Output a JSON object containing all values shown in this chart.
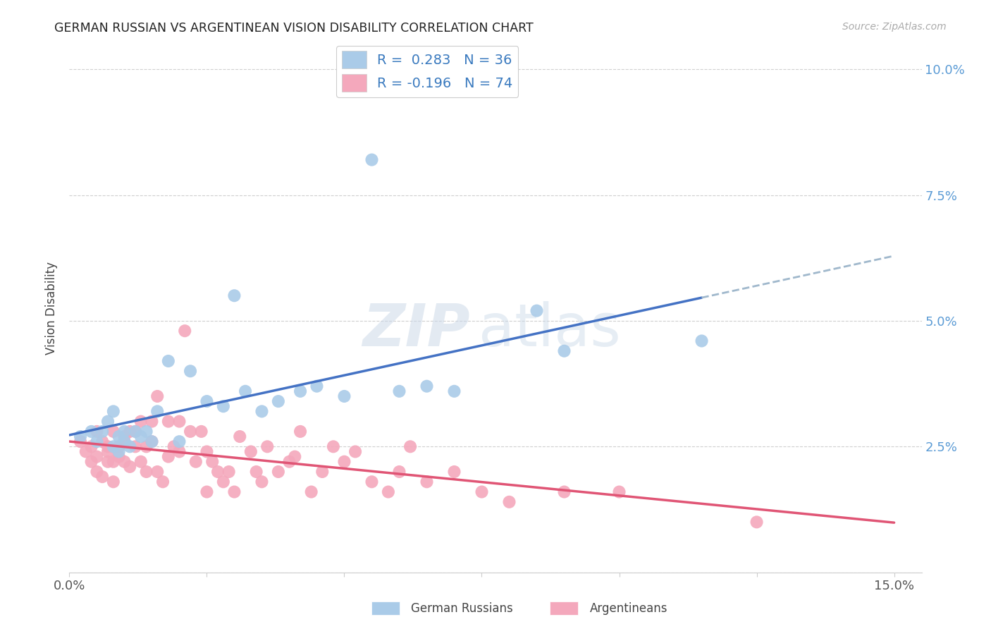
{
  "title": "GERMAN RUSSIAN VS ARGENTINEAN VISION DISABILITY CORRELATION CHART",
  "source": "Source: ZipAtlas.com",
  "xlabel_german": "German Russians",
  "xlabel_argentinean": "Argentineans",
  "ylabel": "Vision Disability",
  "r_german": 0.283,
  "n_german": 36,
  "r_argentinean": -0.196,
  "n_argentinean": 74,
  "x_min": 0.0,
  "x_max": 0.155,
  "y_min": 0.0,
  "y_max": 0.105,
  "yticks": [
    0.0,
    0.025,
    0.05,
    0.075,
    0.1
  ],
  "ytick_labels": [
    "",
    "2.5%",
    "5.0%",
    "7.5%",
    "10.0%"
  ],
  "xticks": [
    0.0,
    0.025,
    0.05,
    0.075,
    0.1,
    0.125,
    0.15
  ],
  "xtick_labels": [
    "0.0%",
    "",
    "",
    "",
    "",
    "",
    "15.0%"
  ],
  "blue_color": "#aacbe8",
  "pink_color": "#f4a8bc",
  "blue_line_color": "#4472c4",
  "pink_line_color": "#e05575",
  "dashed_line_color": "#a0b8cc",
  "watermark_zip": "ZIP",
  "watermark_atlas": "atlas",
  "german_x": [
    0.002,
    0.004,
    0.005,
    0.006,
    0.007,
    0.008,
    0.008,
    0.009,
    0.009,
    0.01,
    0.01,
    0.011,
    0.012,
    0.013,
    0.014,
    0.015,
    0.016,
    0.018,
    0.02,
    0.022,
    0.025,
    0.028,
    0.03,
    0.032,
    0.035,
    0.038,
    0.042,
    0.045,
    0.05,
    0.055,
    0.06,
    0.065,
    0.07,
    0.085,
    0.09,
    0.115
  ],
  "german_y": [
    0.027,
    0.028,
    0.026,
    0.028,
    0.03,
    0.025,
    0.032,
    0.027,
    0.024,
    0.026,
    0.028,
    0.025,
    0.028,
    0.027,
    0.028,
    0.026,
    0.032,
    0.042,
    0.026,
    0.04,
    0.034,
    0.033,
    0.055,
    0.036,
    0.032,
    0.034,
    0.036,
    0.037,
    0.035,
    0.082,
    0.036,
    0.037,
    0.036,
    0.052,
    0.044,
    0.046
  ],
  "argentinean_x": [
    0.002,
    0.003,
    0.004,
    0.004,
    0.005,
    0.005,
    0.005,
    0.006,
    0.006,
    0.007,
    0.007,
    0.007,
    0.008,
    0.008,
    0.008,
    0.009,
    0.009,
    0.01,
    0.01,
    0.01,
    0.011,
    0.011,
    0.012,
    0.012,
    0.013,
    0.013,
    0.014,
    0.014,
    0.015,
    0.015,
    0.016,
    0.016,
    0.017,
    0.018,
    0.018,
    0.019,
    0.02,
    0.02,
    0.021,
    0.022,
    0.023,
    0.024,
    0.025,
    0.025,
    0.026,
    0.027,
    0.028,
    0.029,
    0.03,
    0.031,
    0.033,
    0.034,
    0.035,
    0.036,
    0.038,
    0.04,
    0.041,
    0.042,
    0.044,
    0.046,
    0.048,
    0.05,
    0.052,
    0.055,
    0.058,
    0.06,
    0.062,
    0.065,
    0.07,
    0.075,
    0.08,
    0.09,
    0.1,
    0.125
  ],
  "argentinean_y": [
    0.026,
    0.024,
    0.022,
    0.025,
    0.023,
    0.02,
    0.028,
    0.026,
    0.019,
    0.025,
    0.022,
    0.024,
    0.028,
    0.022,
    0.018,
    0.025,
    0.023,
    0.027,
    0.022,
    0.026,
    0.028,
    0.021,
    0.028,
    0.025,
    0.022,
    0.03,
    0.025,
    0.02,
    0.03,
    0.026,
    0.035,
    0.02,
    0.018,
    0.023,
    0.03,
    0.025,
    0.03,
    0.024,
    0.048,
    0.028,
    0.022,
    0.028,
    0.024,
    0.016,
    0.022,
    0.02,
    0.018,
    0.02,
    0.016,
    0.027,
    0.024,
    0.02,
    0.018,
    0.025,
    0.02,
    0.022,
    0.023,
    0.028,
    0.016,
    0.02,
    0.025,
    0.022,
    0.024,
    0.018,
    0.016,
    0.02,
    0.025,
    0.018,
    0.02,
    0.016,
    0.014,
    0.016,
    0.016,
    0.01
  ]
}
